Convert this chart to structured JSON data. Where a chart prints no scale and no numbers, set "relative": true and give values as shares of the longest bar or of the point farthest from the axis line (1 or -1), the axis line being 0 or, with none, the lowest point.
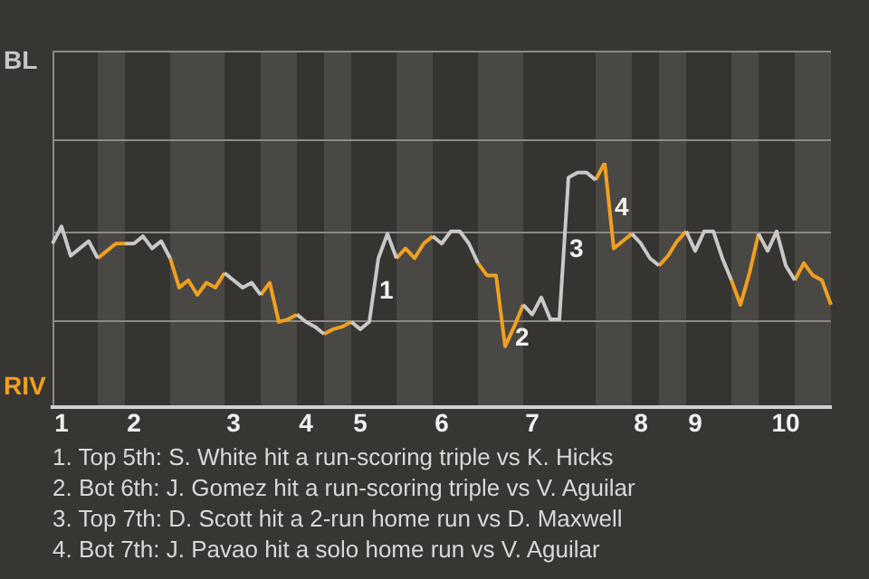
{
  "chart_data": {
    "type": "line",
    "relative": true,
    "categories": [
      null,
      "1",
      null,
      null,
      null,
      null,
      null,
      null,
      null,
      "2",
      null,
      null,
      null,
      null,
      null,
      null,
      null,
      null,
      null,
      null,
      "3",
      null,
      null,
      null,
      null,
      null,
      null,
      null,
      "4",
      null,
      null,
      null,
      null,
      null,
      "5",
      null,
      null,
      null,
      null,
      null,
      null,
      null,
      null,
      "6",
      null,
      null,
      null,
      null,
      null,
      null,
      null,
      null,
      null,
      "7",
      null,
      null,
      null,
      null,
      null,
      null,
      null,
      null,
      null,
      null,
      null,
      "8",
      null,
      null,
      null,
      null,
      null,
      "9",
      null,
      null,
      null,
      null,
      null,
      null,
      null,
      null,
      null,
      "10",
      null,
      null,
      null,
      null,
      null
    ],
    "series": [
      {
        "color": "#c8c8c8",
        "values": [
          0.67,
          0.74,
          0.62,
          0.65,
          0.68,
          0.61,
          null,
          null,
          0.67,
          0.67,
          0.7,
          0.65,
          0.68,
          0.61,
          null,
          null,
          null,
          null,
          null,
          0.55,
          0.52,
          0.49,
          0.51,
          0.46,
          null,
          null,
          null,
          0.38,
          0.35,
          0.33,
          0.3,
          null,
          null,
          0.35,
          0.32,
          0.35,
          0.61,
          0.71,
          0.61,
          null,
          null,
          null,
          0.7,
          0.67,
          0.72,
          0.72,
          0.67,
          0.59,
          null,
          null,
          null,
          null,
          0.42,
          0.38,
          0.45,
          0.36,
          0.36,
          0.94,
          0.96,
          0.96,
          0.93,
          null,
          null,
          null,
          0.71,
          0.67,
          0.61,
          0.58,
          null,
          null,
          0.72,
          0.64,
          0.72,
          0.72,
          0.61,
          0.52,
          null,
          null,
          0.71,
          0.64,
          0.72,
          0.58,
          0.52,
          null,
          null,
          null,
          null
        ]
      },
      {
        "color": "#f0a020",
        "values": [
          null,
          null,
          null,
          null,
          null,
          0.61,
          0.64,
          0.67,
          0.67,
          null,
          null,
          null,
          null,
          0.61,
          0.49,
          0.52,
          0.46,
          0.51,
          0.49,
          0.55,
          null,
          null,
          null,
          0.46,
          0.51,
          0.35,
          0.36,
          0.38,
          null,
          null,
          0.3,
          0.32,
          0.33,
          0.35,
          null,
          null,
          null,
          null,
          0.61,
          0.65,
          0.61,
          0.67,
          0.7,
          null,
          null,
          null,
          null,
          0.59,
          0.54,
          0.54,
          0.25,
          0.33,
          0.42,
          null,
          null,
          null,
          null,
          null,
          null,
          null,
          0.93,
          1,
          0.65,
          0.68,
          0.71,
          null,
          null,
          0.58,
          0.62,
          0.68,
          0.72,
          null,
          null,
          null,
          null,
          0.52,
          0.42,
          0.55,
          0.71,
          null,
          null,
          null,
          0.52,
          0.59,
          0.54,
          0.52,
          0.42
        ]
      }
    ],
    "marker": "none",
    "line_style": "solid",
    "legend": false,
    "ref_lines": [
      {
        "axis": "y",
        "value": 0.72,
        "color": "#8c8a88"
      },
      {
        "axis": "y",
        "value": 0.36,
        "color": "#8c8a88"
      }
    ],
    "annotations": [
      "BL",
      "RIV",
      "1",
      "2",
      "3",
      "4",
      "1. Top 5th: S. White hit a run-scoring triple vs K. Hicks",
      "2. Bot 6th: J. Gomez hit a run-scoring triple vs V. Aguilar",
      "3. Top 7th: D. Scott hit a 2-run home run vs D. Maxwell",
      "4. Bot 7th: J. Pavao hit a solo home run vs V. Aguilar"
    ]
  }
}
